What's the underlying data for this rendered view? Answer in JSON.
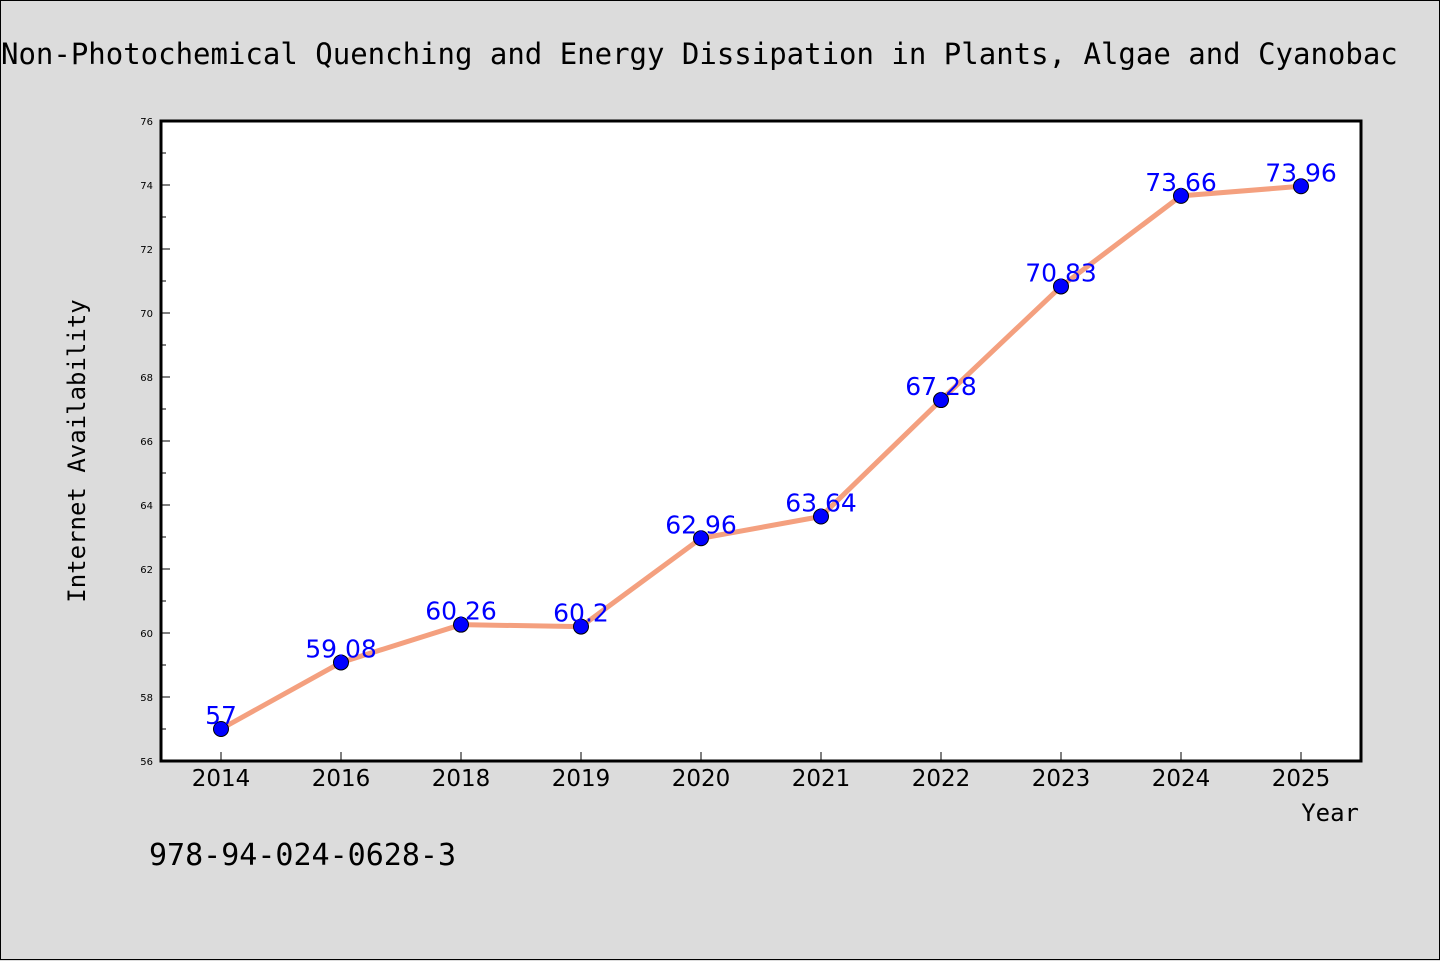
{
  "chart_data": {
    "type": "line",
    "title": "Non-Photochemical Quenching and Energy Dissipation in Plants, Algae and Cyanobac",
    "xlabel": "Year",
    "ylabel": "Internet Availability",
    "categories": [
      "2014",
      "2016",
      "2018",
      "2019",
      "2020",
      "2021",
      "2022",
      "2023",
      "2024",
      "2025"
    ],
    "series": [
      {
        "values": [
          57,
          59.08,
          60.26,
          60.2,
          62.96,
          63.64,
          67.28,
          70.83,
          73.66,
          73.96
        ],
        "labels": [
          "57",
          "59.08",
          "60.26",
          "60.2",
          "62.96",
          "63.64",
          "67.28",
          "70.83",
          "73.66",
          "73.96"
        ],
        "line_color": "#f4a07f",
        "marker_color": "#0000ff",
        "label_color": "#0000ff"
      }
    ],
    "ylim": [
      56,
      76
    ],
    "yticks": [
      "56",
      "58",
      "60",
      "62",
      "64",
      "66",
      "68",
      "70",
      "72",
      "74",
      "76"
    ],
    "grid": false,
    "legend": "none",
    "background_color": "#dcdcdc",
    "plot_background_color": "#ffffff"
  },
  "footer": {
    "text": "978-94-024-0628-3"
  }
}
